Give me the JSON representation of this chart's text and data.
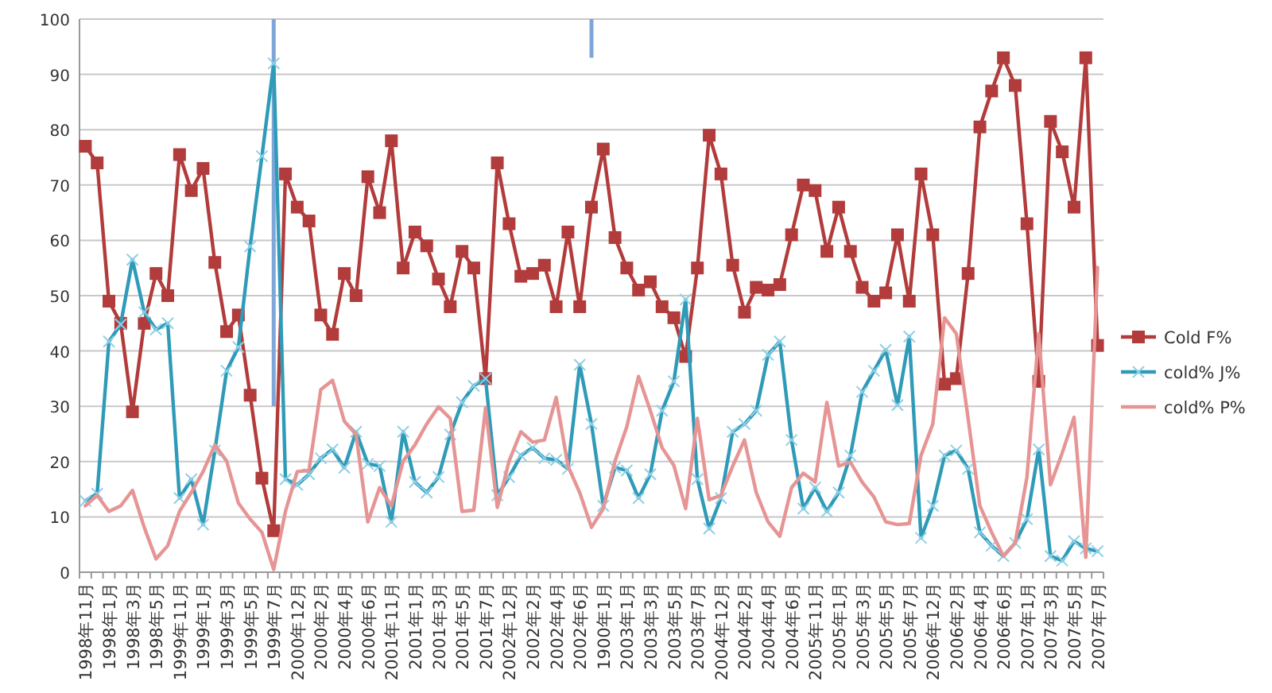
{
  "chart_data": {
    "type": "line",
    "categories": [
      "1998年11月",
      null,
      "1998年1月",
      null,
      "1998年3月",
      null,
      "1998年5月",
      null,
      "1999年11月",
      null,
      "1999年1月",
      null,
      "1999年3月",
      null,
      "1999年5月",
      null,
      "1999年7月",
      null,
      "2000年12月",
      null,
      "2000年2月",
      null,
      "2000年4月",
      null,
      "2000年6月",
      null,
      "2001年11月",
      null,
      "2001年1月",
      null,
      "2001年3月",
      null,
      "2001年5月",
      null,
      "2001年7月",
      null,
      "2002年12月",
      null,
      "2002年2月",
      null,
      "2002年4月",
      null,
      "2002年6月",
      null,
      "1900年1月",
      null,
      "2003年1月",
      null,
      "2003年3月",
      null,
      "2003年5月",
      null,
      "2003年7月",
      null,
      "2004年12月",
      null,
      "2004年2月",
      null,
      "2004年4月",
      null,
      "2004年6月",
      null,
      "2005年11月",
      null,
      "2005年1月",
      null,
      "2005年3月",
      null,
      "2005年5月",
      null,
      "2005年7月",
      null,
      "2006年12月",
      null,
      "2006年2月",
      null,
      "2006年4月",
      null,
      "2006年6月",
      null,
      "2007年1月",
      null,
      "2007年3月",
      null,
      "2007年5月",
      null,
      "2007年7月"
    ],
    "series": [
      {
        "name": "Cold F%",
        "color": "#b23b3b",
        "marker": "square",
        "values": [
          77,
          74,
          49,
          45,
          29,
          45,
          54,
          50,
          75.5,
          69,
          73,
          56,
          43.5,
          46.5,
          32,
          17,
          7.5,
          72,
          66,
          63.5,
          46.5,
          43,
          54,
          50,
          71.5,
          65,
          78,
          55,
          61.5,
          59,
          53,
          48,
          58,
          55,
          35,
          74,
          63,
          53.5,
          54,
          55.5,
          48,
          61.5,
          48,
          66,
          76.5,
          60.5,
          55,
          51,
          52.5,
          48,
          46,
          39,
          55,
          79,
          72,
          55.5,
          47,
          51.5,
          51,
          52,
          61,
          70,
          69,
          58,
          66,
          58,
          51.5,
          49,
          50.5,
          61,
          49,
          72,
          61,
          34,
          35,
          54,
          80.5,
          87,
          93,
          88,
          63,
          34.5,
          81.5,
          76,
          66,
          93,
          41
        ]
      },
      {
        "name": "cold% J%",
        "color": "#2f9bb8",
        "marker": "cross",
        "errors": [
          null,
          null,
          null,
          null,
          null,
          null,
          null,
          null,
          null,
          null,
          null,
          null,
          null,
          null,
          null,
          null,
          [
            30,
            100
          ],
          null,
          null,
          null,
          null,
          null,
          null,
          null,
          null,
          null,
          null,
          null,
          null,
          null,
          null,
          null,
          null,
          null,
          null,
          null,
          null,
          null,
          null,
          null,
          null,
          null,
          null,
          [
            93,
            100
          ],
          null,
          null,
          null,
          null,
          null,
          null,
          null,
          null,
          null,
          null,
          null,
          null,
          null,
          null,
          null,
          null,
          null,
          null,
          null,
          null,
          null,
          null,
          null,
          null,
          null,
          null,
          null,
          null,
          null,
          null,
          null,
          null,
          null,
          null,
          null,
          null,
          null,
          null,
          null,
          null,
          null,
          null,
          null
        ],
        "values": [
          12.9,
          14.2,
          41.7,
          44.8,
          56.5,
          47,
          43.9,
          45,
          13.4,
          16.8,
          8.6,
          22,
          36.4,
          40.7,
          58.9,
          75.2,
          92,
          16.8,
          15.8,
          17.7,
          20.6,
          22.2,
          18.9,
          25.4,
          19.6,
          19.2,
          9.1,
          25.4,
          16.3,
          14.4,
          17.2,
          24.9,
          30.7,
          33.7,
          35,
          13.9,
          17.2,
          21.1,
          22.5,
          20.6,
          20.3,
          18.7,
          37.5,
          26.8,
          12,
          18.9,
          18.4,
          13.4,
          17.7,
          29.2,
          34.5,
          49.3,
          16.8,
          7.9,
          13.4,
          25.4,
          26.8,
          29.2,
          39.3,
          41.7,
          23.9,
          11.5,
          15.3,
          11,
          14.4,
          21.1,
          32.6,
          36.4,
          40.2,
          30.2,
          42.6,
          6.2,
          12,
          21.1,
          22,
          18.7,
          7.2,
          4.8,
          2.9,
          5.3,
          9.6,
          22.2,
          2.9,
          2.1,
          5.6,
          4.3,
          3.8
        ]
      },
      {
        "name": "cold% P%",
        "color": "#e69494",
        "marker": "none",
        "values": [
          12,
          13.9,
          11,
          12,
          14.8,
          8.1,
          2.4,
          4.8,
          11,
          14.4,
          18.2,
          23,
          20.1,
          12.5,
          9.6,
          7.2,
          0.5,
          11,
          18.2,
          18.4,
          33,
          34.7,
          27.3,
          24.9,
          9.1,
          15.3,
          12,
          20.1,
          23,
          26.8,
          29.9,
          27.8,
          11,
          11.2,
          29.7,
          11.7,
          20.1,
          25.4,
          23.5,
          23.9,
          31.6,
          19.2,
          14.4,
          8.1,
          11.5,
          20.1,
          26.3,
          35.4,
          29.2,
          22.5,
          19.3,
          11.5,
          27.8,
          13.1,
          13.9,
          19.2,
          23.9,
          14.4,
          9.1,
          6.5,
          15.3,
          17.9,
          16.3,
          30.7,
          19.2,
          19.9,
          16.3,
          13.6,
          9.1,
          8.6,
          8.8,
          21.1,
          26.8,
          46,
          43.1,
          27.8,
          12,
          7.2,
          2.9,
          5.3,
          17.2,
          43.1,
          15.8,
          21.6,
          28,
          2.7,
          55.1
        ]
      }
    ],
    "ylim": [
      0,
      100
    ],
    "yticks": [
      0,
      10,
      20,
      30,
      40,
      50,
      60,
      70,
      80,
      90,
      100
    ],
    "grid": "y",
    "legend": "right",
    "line_style": "solid"
  }
}
